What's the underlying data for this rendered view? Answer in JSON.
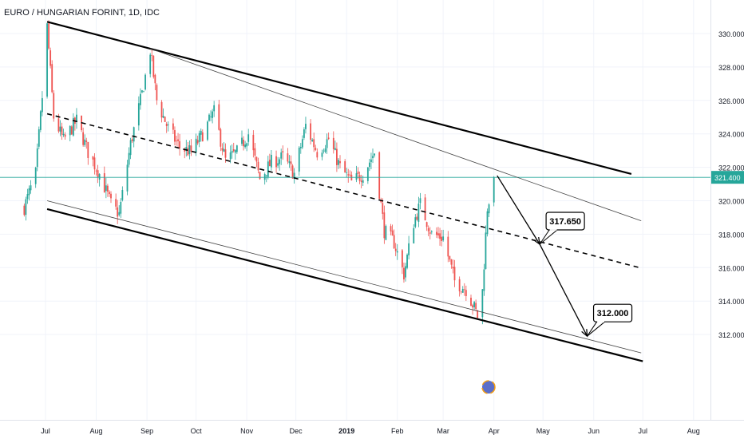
{
  "symbol_title": "EURO / HUNGARIAN FORINT, 1D, IDC",
  "current_price_label": "321.400",
  "chart_data": {
    "type": "candlestick",
    "title": "EURO / HUNGARIAN FORINT, 1D, IDC",
    "xlabel": "",
    "ylabel": "",
    "x_tick_labels": [
      "Jul",
      "Aug",
      "Sep",
      "Oct",
      "Nov",
      "Dec",
      "2019",
      "Feb",
      "Mar",
      "Apr",
      "May",
      "Jun",
      "Jul",
      "Aug"
    ],
    "x_tick_dates": [
      "2018-07-01",
      "2018-08-01",
      "2018-09-01",
      "2018-10-01",
      "2018-11-01",
      "2018-12-01",
      "2019-01-01",
      "2019-02-01",
      "2019-03-01",
      "2019-04-01",
      "2019-05-01",
      "2019-06-01",
      "2019-07-01",
      "2019-08-01"
    ],
    "y_tick_labels": [
      "330.000",
      "328.000",
      "326.000",
      "324.000",
      "322.000",
      "320.000",
      "318.000",
      "316.000",
      "314.000",
      "312.000"
    ],
    "ylim": [
      310.4,
      331.0
    ],
    "grid": true,
    "colors": {
      "up": "#26a69a",
      "down": "#ef5350",
      "price_line": "#26a69a",
      "trendline": "#000000",
      "grid": "#f0f3fa"
    },
    "close_path": [
      [
        "2018-06-18",
        319.6
      ],
      [
        "2018-06-25",
        321.6
      ],
      [
        "2018-06-29",
        326.2
      ],
      [
        "2018-07-02",
        330.4
      ],
      [
        "2018-07-06",
        325.0
      ],
      [
        "2018-07-12",
        323.6
      ],
      [
        "2018-07-20",
        324.8
      ],
      [
        "2018-07-27",
        322.9
      ],
      [
        "2018-08-03",
        321.6
      ],
      [
        "2018-08-10",
        319.8
      ],
      [
        "2018-08-15",
        319.2
      ],
      [
        "2018-08-22",
        323.4
      ],
      [
        "2018-08-29",
        326.4
      ],
      [
        "2018-09-03",
        329.0
      ],
      [
        "2018-09-07",
        326.0
      ],
      [
        "2018-09-14",
        324.3
      ],
      [
        "2018-09-21",
        323.2
      ],
      [
        "2018-09-28",
        322.9
      ],
      [
        "2018-10-05",
        324.0
      ],
      [
        "2018-10-12",
        325.3
      ],
      [
        "2018-10-19",
        322.4
      ],
      [
        "2018-10-26",
        322.9
      ],
      [
        "2018-11-02",
        324.0
      ],
      [
        "2018-11-09",
        321.3
      ],
      [
        "2018-11-16",
        322.3
      ],
      [
        "2018-11-23",
        322.6
      ],
      [
        "2018-11-30",
        321.6
      ],
      [
        "2018-12-07",
        324.5
      ],
      [
        "2018-12-14",
        322.9
      ],
      [
        "2018-12-21",
        323.7
      ],
      [
        "2018-12-28",
        322.0
      ],
      [
        "2019-01-04",
        321.1
      ],
      [
        "2019-01-11",
        321.6
      ],
      [
        "2019-01-18",
        322.9
      ],
      [
        "2019-01-24",
        318.2
      ],
      [
        "2019-01-30",
        317.5
      ],
      [
        "2019-02-05",
        315.6
      ],
      [
        "2019-02-11",
        318.7
      ],
      [
        "2019-02-15",
        319.8
      ],
      [
        "2019-02-22",
        318.0
      ],
      [
        "2019-03-01",
        317.8
      ],
      [
        "2019-03-08",
        315.2
      ],
      [
        "2019-03-15",
        314.7
      ],
      [
        "2019-03-20",
        313.6
      ],
      [
        "2019-03-22",
        313.1
      ],
      [
        "2019-03-25",
        314.6
      ],
      [
        "2019-03-28",
        319.6
      ],
      [
        "2019-04-01",
        321.4
      ]
    ],
    "trendlines": [
      {
        "name": "upper-channel",
        "style": "solid-thick",
        "points": [
          [
            "2018-07-02",
            330.7
          ],
          [
            "2019-06-24",
            321.6
          ]
        ]
      },
      {
        "name": "inner-resistance",
        "style": "solid-thin",
        "points": [
          [
            "2018-09-03",
            329.1
          ],
          [
            "2019-06-30",
            318.8
          ]
        ]
      },
      {
        "name": "mid-channel",
        "style": "dashed",
        "points": [
          [
            "2018-07-02",
            325.2
          ],
          [
            "2019-06-29",
            316.0
          ]
        ]
      },
      {
        "name": "inner-support",
        "style": "solid-thin",
        "points": [
          [
            "2018-07-02",
            320.0
          ],
          [
            "2019-06-30",
            310.9
          ]
        ]
      },
      {
        "name": "lower-channel",
        "style": "solid-thick",
        "points": [
          [
            "2018-07-02",
            319.5
          ],
          [
            "2019-07-01",
            310.4
          ]
        ]
      }
    ],
    "projection_arrows": [
      {
        "from": [
          "2019-04-03",
          321.5
        ],
        "to": [
          "2019-04-29",
          317.4
        ]
      },
      {
        "from": [
          "2019-04-29",
          317.4
        ],
        "to": [
          "2019-05-28",
          311.9
        ]
      }
    ],
    "annotations": [
      {
        "label": "317.650",
        "anchor": [
          "2019-04-29",
          317.4
        ]
      },
      {
        "label": "312.000",
        "anchor": [
          "2019-05-28",
          311.9
        ]
      }
    ]
  }
}
